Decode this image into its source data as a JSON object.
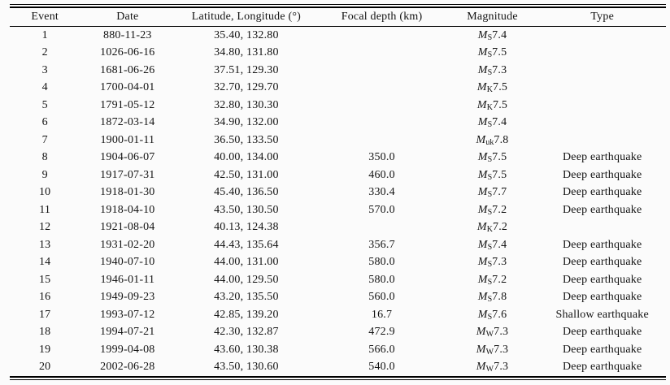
{
  "page": {
    "background_color": "#fbfbfb",
    "text_color": "#131313",
    "rule_color": "#000000"
  },
  "table": {
    "columns": [
      {
        "key": "event",
        "label": "Event"
      },
      {
        "key": "date",
        "label": "Date"
      },
      {
        "key": "lat_lon",
        "label": "Latitude, Longitude (°)"
      },
      {
        "key": "depth",
        "label": "Focal depth (km)"
      },
      {
        "key": "magnitude",
        "label": "Magnitude"
      },
      {
        "key": "type",
        "label": "Type"
      }
    ],
    "rows": [
      {
        "event": "1",
        "date": "880-11-23",
        "lat_lon": "35.40, 132.80",
        "depth": "",
        "magnitude": {
          "symbol": "M",
          "subscript": "S",
          "value": "7.4"
        },
        "type": ""
      },
      {
        "event": "2",
        "date": "1026-06-16",
        "lat_lon": "34.80, 131.80",
        "depth": "",
        "magnitude": {
          "symbol": "M",
          "subscript": "S",
          "value": "7.5"
        },
        "type": ""
      },
      {
        "event": "3",
        "date": "1681-06-26",
        "lat_lon": "37.51, 129.30",
        "depth": "",
        "magnitude": {
          "symbol": "M",
          "subscript": "S",
          "value": "7.3"
        },
        "type": ""
      },
      {
        "event": "4",
        "date": "1700-04-01",
        "lat_lon": "32.70, 129.70",
        "depth": "",
        "magnitude": {
          "symbol": "M",
          "subscript": "K",
          "value": "7.5"
        },
        "type": ""
      },
      {
        "event": "5",
        "date": "1791-05-12",
        "lat_lon": "32.80, 130.30",
        "depth": "",
        "magnitude": {
          "symbol": "M",
          "subscript": "K",
          "value": "7.5"
        },
        "type": ""
      },
      {
        "event": "6",
        "date": "1872-03-14",
        "lat_lon": "34.90, 132.00",
        "depth": "",
        "magnitude": {
          "symbol": "M",
          "subscript": "S",
          "value": "7.4"
        },
        "type": ""
      },
      {
        "event": "7",
        "date": "1900-01-11",
        "lat_lon": "36.50, 133.50",
        "depth": "",
        "magnitude": {
          "symbol": "M",
          "subscript": "uk",
          "value": "7.8"
        },
        "type": ""
      },
      {
        "event": "8",
        "date": "1904-06-07",
        "lat_lon": "40.00, 134.00",
        "depth": "350.0",
        "magnitude": {
          "symbol": "M",
          "subscript": "S",
          "value": "7.5"
        },
        "type": "Deep earthquake"
      },
      {
        "event": "9",
        "date": "1917-07-31",
        "lat_lon": "42.50, 131.00",
        "depth": "460.0",
        "magnitude": {
          "symbol": "M",
          "subscript": "S",
          "value": "7.5"
        },
        "type": "Deep earthquake"
      },
      {
        "event": "10",
        "date": "1918-01-30",
        "lat_lon": "45.40, 136.50",
        "depth": "330.4",
        "magnitude": {
          "symbol": "M",
          "subscript": "S",
          "value": "7.7"
        },
        "type": "Deep earthquake"
      },
      {
        "event": "11",
        "date": "1918-04-10",
        "lat_lon": "43.50, 130.50",
        "depth": "570.0",
        "magnitude": {
          "symbol": "M",
          "subscript": "S",
          "value": "7.2"
        },
        "type": "Deep earthquake"
      },
      {
        "event": "12",
        "date": "1921-08-04",
        "lat_lon": "40.13, 124.38",
        "depth": "",
        "magnitude": {
          "symbol": "M",
          "subscript": "K",
          "value": "7.2"
        },
        "type": ""
      },
      {
        "event": "13",
        "date": "1931-02-20",
        "lat_lon": "44.43, 135.64",
        "depth": "356.7",
        "magnitude": {
          "symbol": "M",
          "subscript": "S",
          "value": "7.4"
        },
        "type": "Deep earthquake"
      },
      {
        "event": "14",
        "date": "1940-07-10",
        "lat_lon": "44.00, 131.00",
        "depth": "580.0",
        "magnitude": {
          "symbol": "M",
          "subscript": "S",
          "value": "7.3"
        },
        "type": "Deep earthquake"
      },
      {
        "event": "15",
        "date": "1946-01-11",
        "lat_lon": "44.00, 129.50",
        "depth": "580.0",
        "magnitude": {
          "symbol": "M",
          "subscript": "S",
          "value": "7.2"
        },
        "type": "Deep earthquake"
      },
      {
        "event": "16",
        "date": "1949-09-23",
        "lat_lon": "43.20, 135.50",
        "depth": "560.0",
        "magnitude": {
          "symbol": "M",
          "subscript": "S",
          "value": "7.8"
        },
        "type": "Deep earthquake"
      },
      {
        "event": "17",
        "date": "1993-07-12",
        "lat_lon": "42.85, 139.20",
        "depth": "16.7",
        "magnitude": {
          "symbol": "M",
          "subscript": "S",
          "value": "7.6"
        },
        "type": "Shallow earthquake"
      },
      {
        "event": "18",
        "date": "1994-07-21",
        "lat_lon": "42.30, 132.87",
        "depth": "472.9",
        "magnitude": {
          "symbol": "M",
          "subscript": "W",
          "value": "7.3"
        },
        "type": "Deep earthquake"
      },
      {
        "event": "19",
        "date": "1999-04-08",
        "lat_lon": "43.60, 130.38",
        "depth": "566.0",
        "magnitude": {
          "symbol": "M",
          "subscript": "W",
          "value": "7.3"
        },
        "type": "Deep earthquake"
      },
      {
        "event": "20",
        "date": "2002-06-28",
        "lat_lon": "43.50, 130.60",
        "depth": "540.0",
        "magnitude": {
          "symbol": "M",
          "subscript": "W",
          "value": "7.3"
        },
        "type": "Deep earthquake"
      }
    ]
  }
}
